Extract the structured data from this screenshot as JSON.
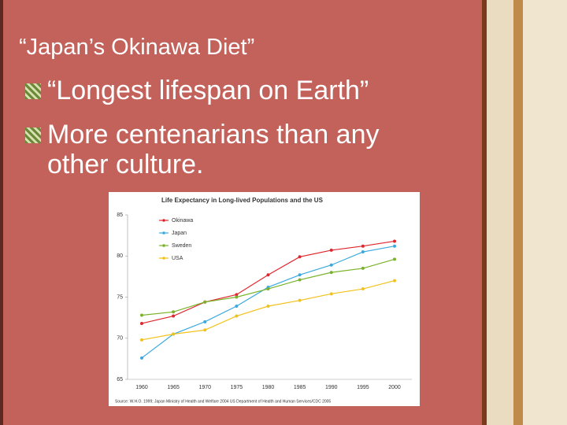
{
  "slide": {
    "title": "“Japan’s Okinawa Diet”",
    "bullets": [
      "“Longest lifespan on Earth”",
      "More centenarians than any other culture."
    ]
  },
  "chart_data": {
    "type": "line",
    "title": "Life Expectancy in Long-lived Populations and the US",
    "source": "Source: W.H.O. 1999; Japan Ministry of Health and Welfare 2004  US Department of Health and Human Services/CDC 2005",
    "categories": [
      "1960",
      "1965",
      "1970",
      "1975",
      "1980",
      "1985",
      "1990",
      "1995",
      "2000"
    ],
    "series": [
      {
        "name": "Okinawa",
        "color": "#e0262e",
        "values": [
          71.8,
          72.7,
          74.4,
          75.3,
          77.7,
          79.9,
          80.7,
          81.2,
          81.8
        ]
      },
      {
        "name": "Japan",
        "color": "#3aa9e0",
        "values": [
          67.6,
          70.5,
          72.0,
          73.9,
          76.2,
          77.7,
          78.9,
          80.5,
          81.2
        ]
      },
      {
        "name": "Sweden",
        "color": "#7ab32a",
        "values": [
          72.8,
          73.2,
          74.4,
          75.0,
          76.0,
          77.1,
          78.0,
          78.5,
          79.6
        ]
      },
      {
        "name": "USA",
        "color": "#f2c21b",
        "values": [
          69.8,
          70.5,
          71.0,
          72.7,
          73.9,
          74.6,
          75.4,
          76.0,
          77.0
        ]
      }
    ],
    "ylim": [
      65,
      85
    ],
    "yticks": [
      65,
      70,
      75,
      80,
      85
    ],
    "grid": false
  }
}
